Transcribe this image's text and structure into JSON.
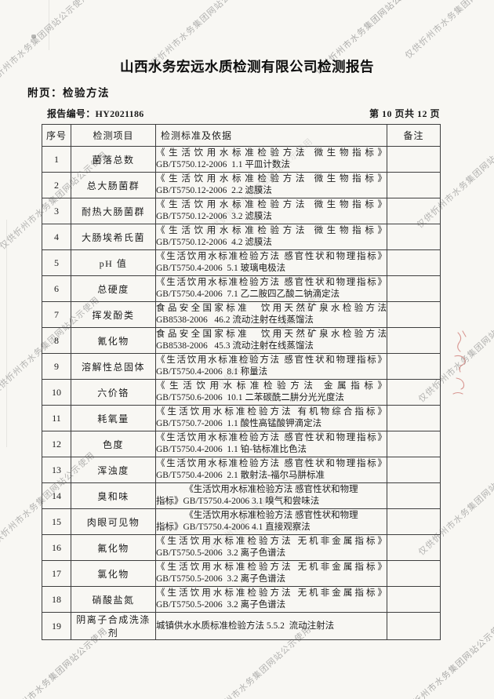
{
  "page": {
    "title": "山西水务宏远水质检测有限公司检测报告",
    "subtitle": "附页：检验方法",
    "report_no_label": "报告编号：",
    "report_no": "HY2021186",
    "page_indicator": "第 10 页共 12 页"
  },
  "watermark": {
    "text": "仅供忻州市水务集团网站公示使用"
  },
  "annotations": {
    "red_ink_mark": "red-handwriting-bleed"
  },
  "table": {
    "headers": [
      "序号",
      "检测项目",
      "检测标准及依据",
      "备注"
    ],
    "rows": [
      {
        "no": "1",
        "item": "菌落总数",
        "lines": [
          "《生活饮用水标准检验方法 微生物指标》",
          "GB/T5750.12-2006  1.1 平皿计数法"
        ],
        "note": ""
      },
      {
        "no": "2",
        "item": "总大肠菌群",
        "lines": [
          "《生活饮用水标准检验方法 微生物指标》",
          "GB/T5750.12-2006  2.2 滤膜法"
        ],
        "note": ""
      },
      {
        "no": "3",
        "item": "耐热大肠菌群",
        "lines": [
          "《生活饮用水标准检验方法 微生物指标》",
          "GB/T5750.12-2006  3.2 滤膜法"
        ],
        "note": ""
      },
      {
        "no": "4",
        "item": "大肠埃希氏菌",
        "lines": [
          "《生活饮用水标准检验方法 微生物指标》",
          "GB/T5750.12-2006  4.2 滤膜法"
        ],
        "note": ""
      },
      {
        "no": "5",
        "item": "pH 值",
        "lines": [
          "《生活饮用水标准检验方法 感官性状和物理指标》",
          "GB/T5750.4-2006  5.1 玻璃电极法"
        ],
        "note": ""
      },
      {
        "no": "6",
        "item": "总硬度",
        "lines": [
          "《生活饮用水标准检验方法 感官性状和物理指标》",
          "GB/T5750.4-2006  7.1 乙二胺四乙酸二钠滴定法"
        ],
        "note": ""
      },
      {
        "no": "7",
        "item": "挥发酚类",
        "lines": [
          "食品安全国家标准　饮用天然矿泉水检验方法",
          "GB8538-2006   46.2 流动注射在线蒸馏法"
        ],
        "note": ""
      },
      {
        "no": "8",
        "item": "氰化物",
        "lines": [
          "食品安全国家标准　饮用天然矿泉水检验方法",
          "GB8538-2006   45.3 流动注射在线蒸馏法"
        ],
        "note": ""
      },
      {
        "no": "9",
        "item": "溶解性总固体",
        "lines": [
          "《生活饮用水标准检验方法 感官性状和物理指标》",
          "GB/T5750.4-2006  8.1 称量法"
        ],
        "note": ""
      },
      {
        "no": "10",
        "item": "六价铬",
        "lines": [
          "《生活饮用水标准检验方法 金属指标》",
          "GB/T5750.6-2006  10.1 二苯碳酰二肼分光光度法"
        ],
        "note": ""
      },
      {
        "no": "11",
        "item": "耗氧量",
        "lines": [
          "《生活饮用水标准检验方法 有机物综合指标》",
          "GB/T5750.7-2006  1.1 酸性高锰酸钾滴定法"
        ],
        "note": ""
      },
      {
        "no": "12",
        "item": "色度",
        "lines": [
          "《生活饮用水标准检验方法 感官性状和物理指标》",
          "GB/T5750.4-2006  1.1 铂-钴标准比色法"
        ],
        "note": ""
      },
      {
        "no": "13",
        "item": "浑浊度",
        "lines": [
          "《生活饮用水标准检验方法 感官性状和物理指标》",
          "GB/T5750.4-2006  2.1 散射法-福尔马肼标准"
        ],
        "note": ""
      },
      {
        "no": "14",
        "item": "臭和味",
        "lines": [
          "《生活饮用水标准检验方法 感官性状和物理",
          "指标》GB/T5750.4-2006 3.1 嗅气和尝味法"
        ],
        "note": ""
      },
      {
        "no": "15",
        "item": "肉眼可见物",
        "lines": [
          "《生活饮用水标准检验方法 感官性状和物理",
          "指标》GB/T5750.4-2006 4.1 直接观察法"
        ],
        "note": ""
      },
      {
        "no": "16",
        "item": "氟化物",
        "lines": [
          "《生活饮用水标准检验方法 无机非金属指标》",
          "GB/T5750.5-2006  3.2 离子色谱法"
        ],
        "note": ""
      },
      {
        "no": "17",
        "item": "氯化物",
        "lines": [
          "《生活饮用水标准检验方法 无机非金属指标》",
          "GB/T5750.5-2006  3.2 离子色谱法"
        ],
        "note": ""
      },
      {
        "no": "18",
        "item": "硝酸盐氮",
        "lines": [
          "《生活饮用水标准检验方法 无机非金属指标》",
          "GB/T5750.5-2006  3.2 离子色谱法"
        ],
        "note": ""
      },
      {
        "no": "19",
        "item": "阴离子合成洗涤剂",
        "lines": [
          "城镇供水水质标准检验方法 5.5.2  流动注射法"
        ],
        "note": ""
      }
    ]
  },
  "colors": {
    "paper": "#f8f7f3",
    "ink": "#1c1c1c",
    "border": "#3e3e3e",
    "watermark": "#6f6f6f",
    "red_ink": "#bf4a43"
  }
}
